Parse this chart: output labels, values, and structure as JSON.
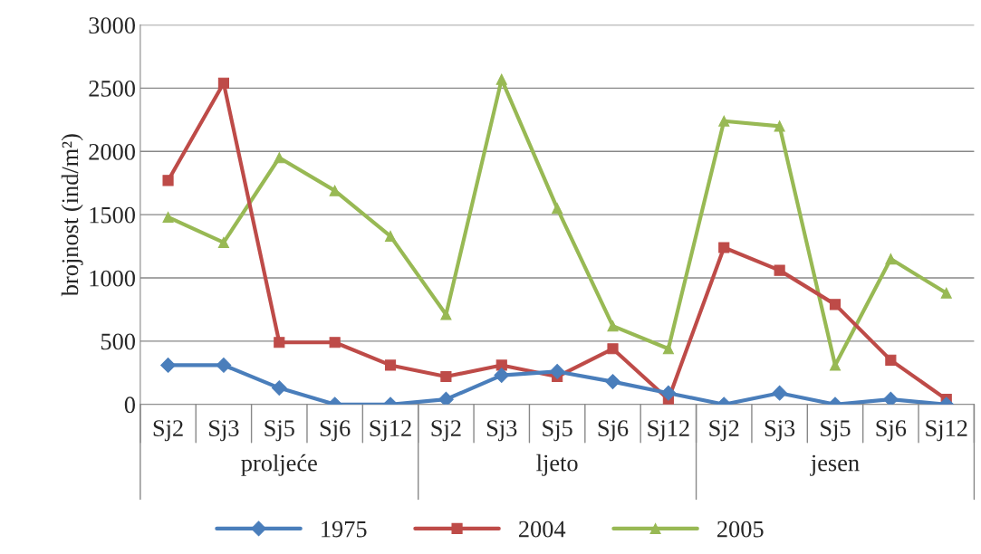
{
  "chart_data": {
    "type": "line",
    "ylabel": "brojnost (ind/m²)",
    "categories": [
      "Sj2",
      "Sj3",
      "Sj5",
      "Sj6",
      "Sj12",
      "Sj2",
      "Sj3",
      "Sj5",
      "Sj6",
      "Sj12",
      "Sj2",
      "Sj3",
      "Sj5",
      "Sj6",
      "Sj12"
    ],
    "annotations": [
      "proljeće",
      "ljeto",
      "jesen"
    ],
    "series": [
      {
        "name": "1975",
        "color": "#4a7ebb",
        "marker": "diamond",
        "values": [
          310,
          310,
          130,
          0,
          0,
          40,
          230,
          260,
          180,
          90,
          0,
          90,
          0,
          40,
          0
        ]
      },
      {
        "name": "2004",
        "color": "#be4b48",
        "marker": "square",
        "values": [
          1770,
          2540,
          490,
          490,
          310,
          220,
          310,
          220,
          440,
          40,
          1240,
          1060,
          790,
          350,
          40
        ]
      },
      {
        "name": "2005",
        "color": "#98b954",
        "marker": "triangle",
        "values": [
          1480,
          1280,
          1950,
          1690,
          1330,
          710,
          2570,
          1550,
          620,
          440,
          2240,
          2200,
          310,
          1150,
          880
        ]
      }
    ],
    "ylim": [
      0,
      3000
    ],
    "yticks": [
      0,
      500,
      1000,
      1500,
      2000,
      2500,
      3000
    ],
    "grid": "y",
    "legend": "bottom",
    "line_style": "solid"
  }
}
